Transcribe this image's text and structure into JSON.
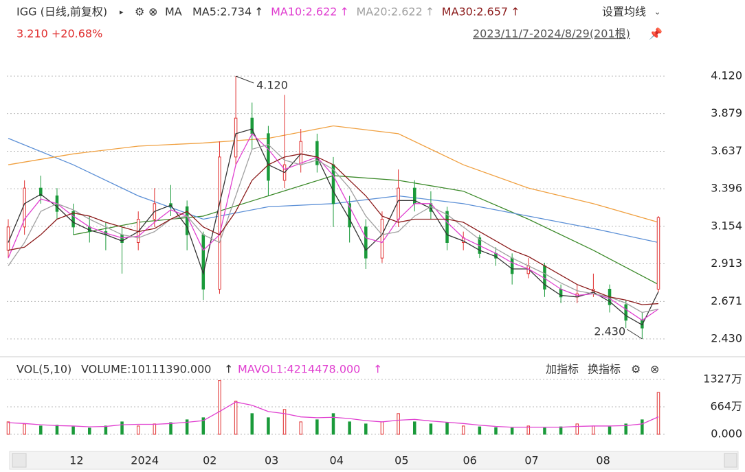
{
  "chart_data": {
    "type": "candlestick",
    "title": "IGG (日线,前复权)",
    "indicator": "MA",
    "settings": "设置均线",
    "price_change": "3.210 +20.68%",
    "range": "2023/11/7-2024/8/29(201根)",
    "x": [
      0,
      5,
      10,
      15,
      20,
      25,
      30,
      35,
      40,
      45,
      50,
      55,
      60,
      65,
      70,
      75,
      80,
      85,
      90,
      95,
      100,
      105,
      110,
      115,
      120,
      125,
      130,
      135,
      140,
      145,
      150,
      155,
      160,
      165,
      170,
      175,
      180,
      185,
      190,
      195,
      200
    ],
    "xlim": [
      0,
      200
    ],
    "xticks": [
      {
        "value": 21,
        "label": "12"
      },
      {
        "value": 42,
        "label": "2024"
      },
      {
        "value": 62,
        "label": "02"
      },
      {
        "value": 81,
        "label": "03"
      },
      {
        "value": 101,
        "label": "04"
      },
      {
        "value": 121,
        "label": "05"
      },
      {
        "value": 142,
        "label": "06"
      },
      {
        "value": 161,
        "label": "07"
      },
      {
        "value": 183,
        "label": "08"
      }
    ],
    "open": [
      3.0,
      3.15,
      3.4,
      3.35,
      3.25,
      3.15,
      3.12,
      3.1,
      3.05,
      3.2,
      3.3,
      3.28,
      3.1,
      2.75,
      3.6,
      3.85,
      3.75,
      3.45,
      3.55,
      3.7,
      3.55,
      3.3,
      3.15,
      2.95,
      3.2,
      3.4,
      3.3,
      3.25,
      3.05,
      3.08,
      2.98,
      2.95,
      2.85,
      2.9,
      2.75,
      2.7,
      2.72,
      2.75,
      2.65,
      2.55,
      2.75
    ],
    "high": [
      3.2,
      3.45,
      3.48,
      3.4,
      3.3,
      3.22,
      3.18,
      3.15,
      3.25,
      3.4,
      3.42,
      3.32,
      3.12,
      3.7,
      4.12,
      3.95,
      3.8,
      4.0,
      3.78,
      3.75,
      3.6,
      3.35,
      3.2,
      3.25,
      3.52,
      3.45,
      3.38,
      3.28,
      3.12,
      3.1,
      3.02,
      2.98,
      2.95,
      2.92,
      2.78,
      2.78,
      2.85,
      2.78,
      2.68,
      2.6,
      3.22
    ],
    "low": [
      2.95,
      3.1,
      3.3,
      3.2,
      3.1,
      3.05,
      3.0,
      2.85,
      3.0,
      3.15,
      3.22,
      3.0,
      2.68,
      2.72,
      3.55,
      3.65,
      3.35,
      3.4,
      3.5,
      3.5,
      3.15,
      3.05,
      2.88,
      2.92,
      3.15,
      3.25,
      3.2,
      3.0,
      3.0,
      2.95,
      2.9,
      2.78,
      2.82,
      2.7,
      2.66,
      2.66,
      2.7,
      2.6,
      2.5,
      2.43,
      2.73
    ],
    "close": [
      3.15,
      3.4,
      3.35,
      3.25,
      3.15,
      3.12,
      3.1,
      3.05,
      3.2,
      3.3,
      3.28,
      3.1,
      2.75,
      3.6,
      3.85,
      3.75,
      3.45,
      3.55,
      3.7,
      3.55,
      3.3,
      3.15,
      2.95,
      3.2,
      3.4,
      3.3,
      3.25,
      3.05,
      3.08,
      2.98,
      2.95,
      2.85,
      2.9,
      2.75,
      2.7,
      2.72,
      2.75,
      2.65,
      2.55,
      2.5,
      3.21
    ],
    "up_color": "#e03030",
    "down_color": "#1a9a3a",
    "ylim": [
      2.43,
      4.12
    ],
    "yticks": [
      {
        "value": 4.12,
        "label": "4.120"
      },
      3.879,
      3.637,
      3.396,
      3.154,
      2.913,
      2.671,
      {
        "value": 2.43,
        "label": "2.430"
      }
    ],
    "grid": true,
    "annotations": [
      {
        "text": "4.120",
        "index": 14
      },
      {
        "text": "2.430",
        "index": 39
      }
    ],
    "series": [
      {
        "name": "MA5:2.734",
        "color": "#333333",
        "values": [
          3.05,
          3.3,
          3.36,
          3.28,
          3.18,
          3.13,
          3.1,
          3.06,
          3.12,
          3.25,
          3.29,
          3.15,
          2.85,
          3.3,
          3.75,
          3.78,
          3.55,
          3.5,
          3.62,
          3.6,
          3.38,
          3.2,
          3.0,
          3.1,
          3.32,
          3.32,
          3.27,
          3.1,
          3.06,
          3.0,
          2.96,
          2.88,
          2.88,
          2.78,
          2.71,
          2.7,
          2.73,
          2.67,
          2.58,
          2.52,
          2.734
        ]
      },
      {
        "name": "MA10:2.622",
        "color": "#e040d0",
        "values": [
          2.95,
          3.2,
          3.33,
          3.3,
          3.22,
          3.15,
          3.11,
          3.08,
          3.09,
          3.18,
          3.26,
          3.22,
          3.0,
          3.1,
          3.55,
          3.75,
          3.65,
          3.52,
          3.56,
          3.6,
          3.48,
          3.28,
          3.08,
          3.05,
          3.2,
          3.3,
          3.3,
          3.18,
          3.08,
          3.03,
          2.98,
          2.92,
          2.88,
          2.82,
          2.75,
          2.71,
          2.72,
          2.69,
          2.62,
          2.55,
          2.622
        ]
      },
      {
        "name": "MA20:2.622",
        "color": "#a0a0a0",
        "values": [
          2.9,
          3.05,
          3.25,
          3.3,
          3.26,
          3.2,
          3.15,
          3.1,
          3.08,
          3.12,
          3.2,
          3.22,
          3.1,
          3.05,
          3.35,
          3.65,
          3.68,
          3.58,
          3.55,
          3.58,
          3.52,
          3.4,
          3.22,
          3.1,
          3.12,
          3.22,
          3.28,
          3.23,
          3.15,
          3.07,
          3.01,
          2.95,
          2.9,
          2.85,
          2.79,
          2.74,
          2.72,
          2.7,
          2.66,
          2.6,
          2.622
        ]
      },
      {
        "name": "MA30:2.657",
        "color": "#8b1a1a",
        "values": [
          3.0,
          3.02,
          3.1,
          3.2,
          3.24,
          3.22,
          3.18,
          3.15,
          3.12,
          3.14,
          3.2,
          3.25,
          3.15,
          3.1,
          3.25,
          3.45,
          3.55,
          3.6,
          3.62,
          3.6,
          3.55,
          3.45,
          3.35,
          3.22,
          3.18,
          3.2,
          3.2,
          3.2,
          3.18,
          3.12,
          3.06,
          3.0,
          2.96,
          2.9,
          2.84,
          2.78,
          2.74,
          2.7,
          2.68,
          2.65,
          2.657
        ]
      }
    ],
    "extra_lines": [
      {
        "color": "#3c8a2a",
        "x": [
          20,
          40,
          60,
          80,
          100,
          120,
          140,
          160,
          180,
          200
        ],
        "values": [
          3.1,
          3.18,
          3.22,
          3.35,
          3.48,
          3.45,
          3.38,
          3.2,
          3.0,
          2.78
        ]
      },
      {
        "color": "#5b8fd6",
        "x": [
          0,
          20,
          40,
          60,
          80,
          100,
          120,
          140,
          160,
          180,
          200
        ],
        "values": [
          3.72,
          3.55,
          3.35,
          3.2,
          3.28,
          3.3,
          3.35,
          3.3,
          3.22,
          3.14,
          3.05
        ]
      },
      {
        "color": "#f0a040",
        "x": [
          0,
          20,
          40,
          60,
          80,
          100,
          120,
          140,
          160,
          180,
          200
        ],
        "values": [
          3.55,
          3.62,
          3.67,
          3.69,
          3.72,
          3.8,
          3.75,
          3.55,
          3.4,
          3.3,
          3.18
        ]
      }
    ],
    "volume": {
      "title": "VOL(5,10)",
      "volume_label": "VOLUME:10111390.000",
      "mavol_label": "MAVOL1:4214478.000",
      "add": "加指标",
      "switch": "换指标",
      "values": [
        3000000,
        2500000,
        2000000,
        2200000,
        1800000,
        1500000,
        2000000,
        3000000,
        2000000,
        2500000,
        2800000,
        3500000,
        4000000,
        13000000,
        8000000,
        5000000,
        4000000,
        6000000,
        3000000,
        3500000,
        5000000,
        3000000,
        2500000,
        3000000,
        5000000,
        3000000,
        2500000,
        2800000,
        2000000,
        1800000,
        1600000,
        1500000,
        2000000,
        1500000,
        1800000,
        2500000,
        2000000,
        1800000,
        2500000,
        3500000,
        10111390
      ],
      "mavol": [
        2800000,
        2600000,
        2300000,
        2100000,
        2000000,
        1800000,
        1900000,
        2300000,
        2400000,
        2400000,
        2600000,
        2900000,
        3300000,
        5500000,
        7800000,
        7000000,
        5500000,
        5000000,
        4200000,
        4000000,
        4100000,
        3800000,
        3300000,
        3000000,
        3400000,
        3600000,
        3200000,
        2900000,
        2600000,
        2200000,
        1900000,
        1700000,
        1700000,
        1700000,
        1700000,
        1900000,
        2000000,
        2000000,
        2100000,
        2500000,
        4214478
      ],
      "mavol_color": "#e040d0",
      "ylim": [
        0,
        13270000
      ],
      "yticks": [
        {
          "value": 13270000,
          "label": "1327万"
        },
        {
          "value": 6640000,
          "label": "664万"
        },
        {
          "value": 0,
          "label": "0.000"
        }
      ]
    }
  }
}
